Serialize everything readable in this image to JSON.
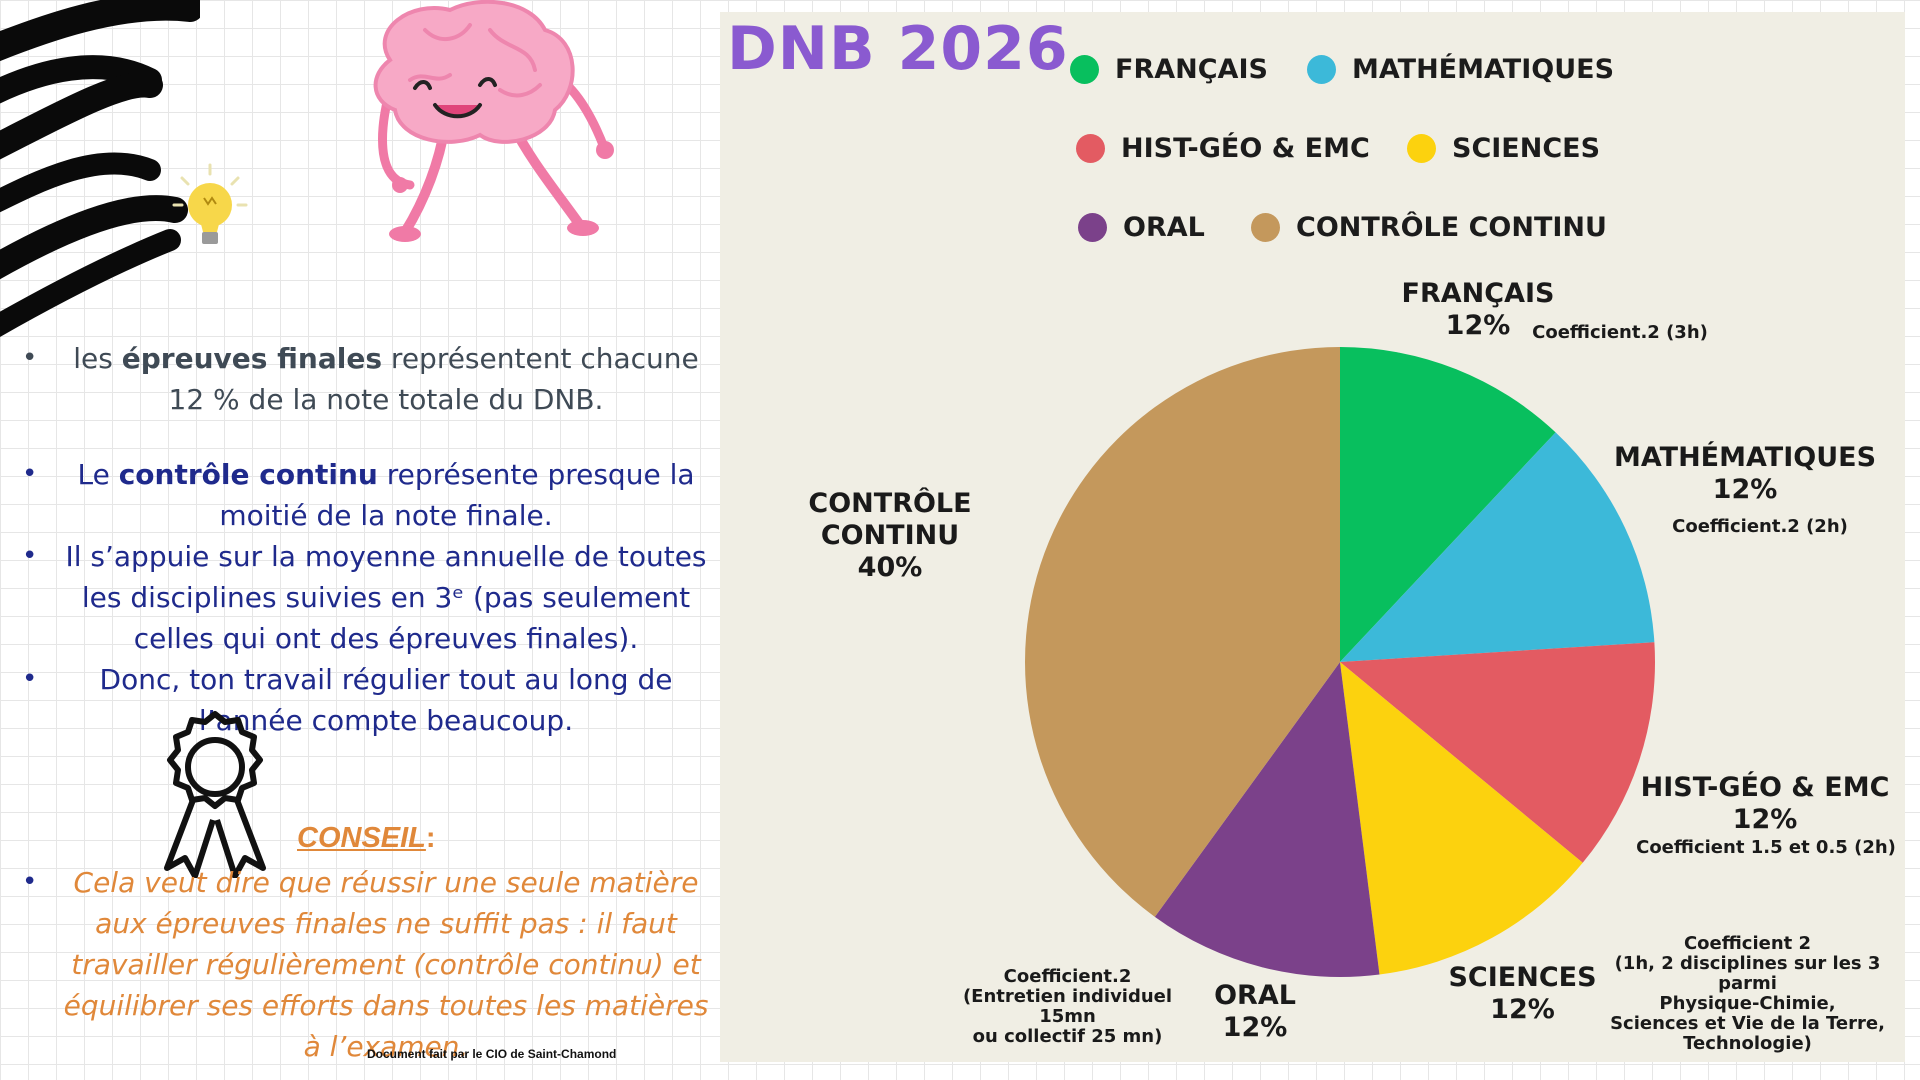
{
  "left": {
    "bullet1": {
      "pre": "les ",
      "bold": "épreuves finales",
      "post": " représentent chacune 12 % de la note totale du DNB."
    },
    "bullet2": {
      "pre": "Le ",
      "bold": "contrôle continu",
      "post": " représente presque la moitié de la note finale."
    },
    "bullet3": {
      "text": "Il s’appuie sur la moyenne annuelle de toutes les disciplines suivies en 3ᵉ (pas seulement celles qui ont des épreuves finales)."
    },
    "bullet4": {
      "text": "Donc, ton travail régulier tout au long de l’année compte beaucoup."
    },
    "conseil_label": "CONSEIL",
    "conseil_colon": ":",
    "conseil_text": "Cela veut dire que réussir une seule matière aux épreuves finales ne suffit pas : il faut travailler régulièrement (contrôle continu) et équilibrer ses efforts dans toutes les matières à l’examen.",
    "footer": "Document fait par le CIO de Saint-Chamond",
    "bullet_char": "•"
  },
  "colors": {
    "title": "#8a5ad0",
    "francais": "#08bf5e",
    "maths": "#3cb9d9",
    "histgeo": "#e35b62",
    "sciences": "#fcd20e",
    "oral": "#7b418a",
    "controle": "#c4985c"
  },
  "chart_data": {
    "type": "pie",
    "title": "DNB 2026",
    "legend": [
      {
        "label": "FRANÇAIS",
        "color": "#08bf5e"
      },
      {
        "label": "MATHÉMATIQUES",
        "color": "#3cb9d9"
      },
      {
        "label": "HIST-GÉO & EMC",
        "color": "#e35b62"
      },
      {
        "label": "SCIENCES",
        "color": "#fcd20e"
      },
      {
        "label": "ORAL",
        "color": "#7b418a"
      },
      {
        "label": "CONTRÔLE CONTINU",
        "color": "#c4985c"
      }
    ],
    "slices": [
      {
        "label": "FRANÇAIS",
        "value": 12,
        "pct_label": "12%",
        "coef": "Coefficient.2 (3h)",
        "color": "#08bf5e"
      },
      {
        "label": "MATHÉMATIQUES",
        "value": 12,
        "pct_label": "12%",
        "coef": "Coefficient.2 (2h)",
        "color": "#3cb9d9"
      },
      {
        "label": "HIST-GÉO & EMC",
        "value": 12,
        "pct_label": "12%",
        "coef": "Coefficient 1.5 et 0.5 (2h)",
        "color": "#e35b62"
      },
      {
        "label": "SCIENCES",
        "value": 12,
        "pct_label": "12%",
        "coef_lines": [
          "Coefficient 2",
          "(1h, 2 disciplines sur les 3",
          "parmi",
          "Physique-Chimie,",
          "Sciences et Vie de la Terre,",
          "Technologie)"
        ],
        "color": "#fcd20e"
      },
      {
        "label": "ORAL",
        "value": 12,
        "pct_label": "12%",
        "coef_lines": [
          "Coefficient.2",
          "(Entretien individuel",
          "15mn",
          "ou collectif 25 mn)"
        ],
        "color": "#7b418a"
      },
      {
        "label": "CONTRÔLE CONTINU",
        "value": 40,
        "pct_label": "40%",
        "color": "#c4985c"
      }
    ]
  }
}
